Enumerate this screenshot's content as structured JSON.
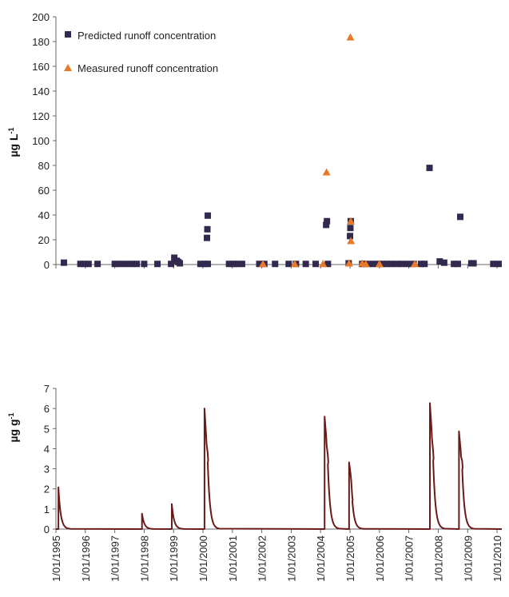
{
  "colors": {
    "predicted": "#33294f",
    "measured": "#e8782a",
    "soil_line": "#6b1a1a",
    "axis": "#666666"
  },
  "chart_data": [
    {
      "type": "scatter",
      "ylabel": {
        "base": "µg L",
        "sup": "-1"
      },
      "ylim": [
        0,
        200
      ],
      "yticks": [
        0,
        20,
        40,
        60,
        80,
        100,
        120,
        140,
        160,
        180,
        200
      ],
      "xlim": [
        "1995-01-01",
        "2010-03-01"
      ],
      "legend_position": "top-left",
      "series": [
        {
          "name": "Predicted runoff concentration",
          "marker": "square",
          "points": [
            [
              "1995-04-10",
              1.5
            ],
            [
              "1995-11-01",
              0.5
            ],
            [
              "1995-12-20",
              0.5
            ],
            [
              "1996-02-10",
              0.5
            ],
            [
              "1996-06-01",
              0.5
            ],
            [
              "1997-01-01",
              0.5
            ],
            [
              "1997-03-01",
              0.5
            ],
            [
              "1997-05-15",
              0.5
            ],
            [
              "1997-08-01",
              0.5
            ],
            [
              "1997-10-01",
              0.5
            ],
            [
              "1998-01-01",
              0.5
            ],
            [
              "1998-06-15",
              0.5
            ],
            [
              "1998-12-01",
              0.5
            ],
            [
              "1999-01-10",
              5.5
            ],
            [
              "1999-02-10",
              3.0
            ],
            [
              "1999-03-01",
              2.0
            ],
            [
              "1999-03-20",
              1.0
            ],
            [
              "1999-12-01",
              0.5
            ],
            [
              "2000-01-20",
              0.5
            ],
            [
              "2000-03-01",
              0.5
            ],
            [
              "2000-03-01",
              39.5
            ],
            [
              "2000-02-25",
              28.5
            ],
            [
              "2000-02-20",
              21.5
            ],
            [
              "2000-11-20",
              0.5
            ],
            [
              "2001-01-20",
              0.5
            ],
            [
              "2001-03-01",
              0.5
            ],
            [
              "2001-05-01",
              0.5
            ],
            [
              "2001-12-01",
              0.5
            ],
            [
              "2002-02-01",
              0.5
            ],
            [
              "2002-06-15",
              0.5
            ],
            [
              "2002-12-01",
              0.5
            ],
            [
              "2003-03-01",
              0.5
            ],
            [
              "2003-07-01",
              0.5
            ],
            [
              "2003-11-01",
              0.5
            ],
            [
              "2004-03-10",
              32.0
            ],
            [
              "2004-03-20",
              35.0
            ],
            [
              "2004-04-01",
              0.5
            ],
            [
              "2004-12-15",
              1.0
            ],
            [
              "2005-01-01",
              23.0
            ],
            [
              "2005-01-05",
              29.5
            ],
            [
              "2005-01-10",
              35.0
            ],
            [
              "2005-06-01",
              0.5
            ],
            [
              "2005-07-15",
              0.5
            ],
            [
              "2005-10-01",
              0.5
            ],
            [
              "2005-12-15",
              0.5
            ],
            [
              "2006-02-01",
              0.5
            ],
            [
              "2006-04-01",
              0.5
            ],
            [
              "2006-06-01",
              0.5
            ],
            [
              "2006-08-01",
              0.5
            ],
            [
              "2006-10-01",
              0.5
            ],
            [
              "2006-12-15",
              0.5
            ],
            [
              "2007-03-01",
              0.5
            ],
            [
              "2007-06-01",
              0.5
            ],
            [
              "2007-07-15",
              0.5
            ],
            [
              "2007-09-15",
              78.0
            ],
            [
              "2008-01-20",
              2.5
            ],
            [
              "2008-03-15",
              1.5
            ],
            [
              "2008-07-15",
              0.5
            ],
            [
              "2008-09-01",
              0.5
            ],
            [
              "2008-10-01",
              38.5
            ],
            [
              "2009-02-15",
              1.0
            ],
            [
              "2009-03-15",
              1.0
            ],
            [
              "2009-11-15",
              0.5
            ],
            [
              "2010-01-20",
              0.5
            ]
          ]
        },
        {
          "name": "Measured runoff concentration",
          "marker": "triangle",
          "points": [
            [
              "2002-01-15",
              0.5
            ],
            [
              "2003-02-15",
              0.5
            ],
            [
              "2004-03-15",
              74.5
            ],
            [
              "2004-02-01",
              0.5
            ],
            [
              "2005-01-05",
              183.5
            ],
            [
              "2005-01-10",
              35.0
            ],
            [
              "2005-01-12",
              19.0
            ],
            [
              "2004-12-20",
              1.0
            ],
            [
              "2005-06-01",
              1.0
            ],
            [
              "2005-07-15",
              0.5
            ],
            [
              "2006-01-01",
              0.5
            ],
            [
              "2007-03-15",
              0.5
            ]
          ]
        }
      ]
    },
    {
      "type": "line",
      "ylabel": {
        "base": "µg g",
        "sup": "-1"
      },
      "ylim": [
        0,
        7
      ],
      "yticks": [
        0,
        1,
        2,
        3,
        4,
        5,
        6,
        7
      ],
      "xlim": [
        "1995-01-01",
        "2010-03-01"
      ],
      "x_tick_labels": [
        "1/01/1995",
        "1/01/1996",
        "1/01/1997",
        "1/01/1998",
        "1/01/1999",
        "1/01/2000",
        "1/01/2001",
        "1/01/2002",
        "1/01/2003",
        "1/01/2004",
        "1/01/2005",
        "1/01/2006",
        "1/01/2007",
        "1/01/2008",
        "1/01/2009",
        "1/01/2010"
      ],
      "x_tick_dates": [
        "1995-01-01",
        "1996-01-01",
        "1997-01-01",
        "1998-01-01",
        "1999-01-01",
        "2000-01-01",
        "2001-01-01",
        "2002-01-01",
        "2003-01-01",
        "2004-01-01",
        "2005-01-01",
        "2006-01-01",
        "2007-01-01",
        "2008-01-01",
        "2009-01-01",
        "2010-01-01"
      ],
      "series": [
        {
          "style": "peaks",
          "peaks": [
            {
              "date": "1995-02-01",
              "peak": 2.08,
              "secondary": []
            },
            {
              "date": "1997-12-05",
              "peak": 0.77,
              "secondary": []
            },
            {
              "date": "1998-12-10",
              "peak": 1.25,
              "secondary": []
            },
            {
              "date": "2000-01-20",
              "peak": 6.0,
              "secondary": [
                4.7,
                3.8
              ]
            },
            {
              "date": "2004-02-20",
              "peak": 5.6,
              "secondary": [
                4.6,
                3.7
              ]
            },
            {
              "date": "2004-12-20",
              "peak": 3.32,
              "secondary": [
                2.7,
                1.6
              ]
            },
            {
              "date": "2007-09-20",
              "peak": 6.27,
              "secondary": [
                5.0,
                3.9
              ]
            },
            {
              "date": "2008-09-15",
              "peak": 4.86,
              "secondary": [
                4.0,
                3.4
              ]
            }
          ]
        }
      ]
    }
  ]
}
